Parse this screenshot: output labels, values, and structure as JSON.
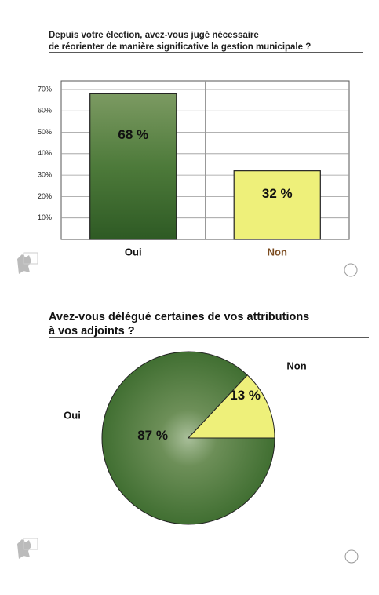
{
  "chart_data": [
    {
      "type": "bar",
      "title": [
        "Depuis votre élection, avez-vous jugé nécessaire",
        "de réorienter de manière significative la gestion municipale ?"
      ],
      "categories": [
        "Oui",
        "Non"
      ],
      "category_colors": [
        "#111111",
        "#7a4a1e"
      ],
      "values": [
        68,
        32
      ],
      "value_labels": [
        "68 %",
        "32 %"
      ],
      "colors": [
        "#3f6d30",
        "#eef07a"
      ],
      "ylim": [
        0,
        74
      ],
      "yticks": [
        {
          "value": 10,
          "label": "10%"
        },
        {
          "value": 20,
          "label": "20%"
        },
        {
          "value": 30,
          "label": "30%"
        },
        {
          "value": 40,
          "label": "40%"
        },
        {
          "value": 50,
          "label": "50%"
        },
        {
          "value": 60,
          "label": "60%"
        },
        {
          "value": 70,
          "label": "70%"
        }
      ],
      "grid": true
    },
    {
      "type": "pie",
      "title": [
        "Avez-vous délégué certaines de vos attributions",
        "à vos adjoints ?"
      ],
      "categories": [
        "Oui",
        "Non"
      ],
      "values": [
        87,
        13
      ],
      "value_labels": [
        "87 %",
        "13 %"
      ],
      "colors": [
        "#3f6d30",
        "#eef07a"
      ]
    }
  ]
}
